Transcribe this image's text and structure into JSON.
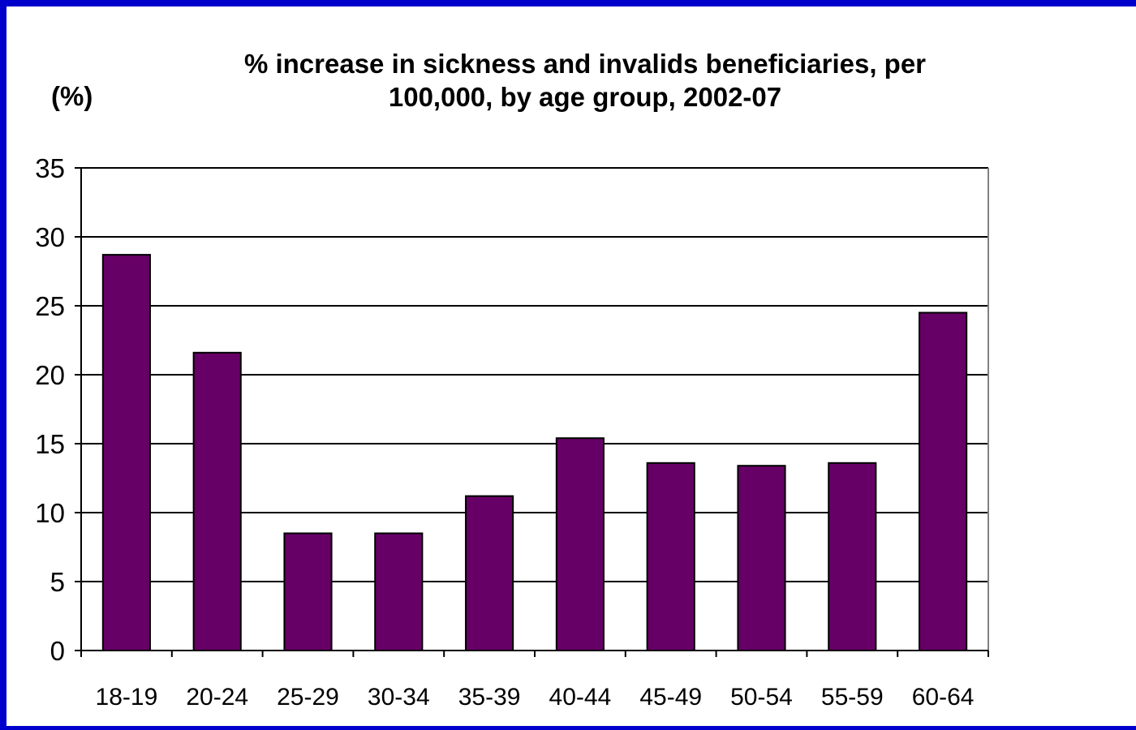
{
  "colors": {
    "border": "#0000CC",
    "background": "#FFFFFF",
    "bar": "#660066",
    "gridline": "#000000",
    "axis": "#808080"
  },
  "chart_data": {
    "type": "bar",
    "title_line1": "% increase in sickness and invalids beneficiaries, per",
    "title_line2": "100,000, by age group, 2002-07",
    "title": "% increase in sickness and invalids beneficiaries, per 100,000, by age group, 2002-07",
    "ylabel": "(%)",
    "xlabel": "",
    "ylim": [
      0,
      35
    ],
    "yticks": [
      0,
      5,
      10,
      15,
      20,
      25,
      30,
      35
    ],
    "grid": true,
    "legend": "none",
    "categories": [
      "18-19",
      "20-24",
      "25-29",
      "30-34",
      "35-39",
      "40-44",
      "45-49",
      "50-54",
      "55-59",
      "60-64"
    ],
    "values": [
      28.7,
      21.6,
      8.5,
      8.5,
      11.2,
      15.4,
      13.6,
      13.4,
      13.6,
      24.5
    ]
  }
}
